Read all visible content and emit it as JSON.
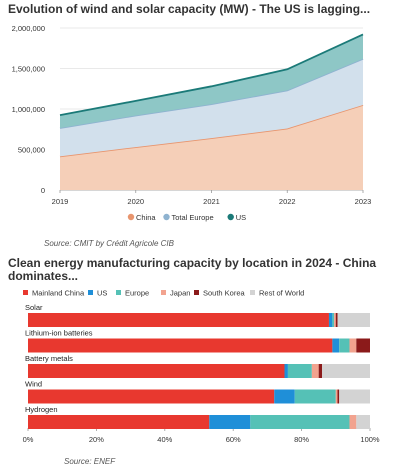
{
  "chart_data": [
    {
      "type": "area",
      "title": "Evolution of wind and solar capacity (MW) - The US is lagging...",
      "source": "Source: CMIT by Crédit Agricole CIB",
      "x": [
        "2019",
        "2020",
        "2021",
        "2022",
        "2023"
      ],
      "ylim": [
        0,
        2000000
      ],
      "yticks": [
        "0",
        "500,000",
        "1,000,000",
        "1,500,000",
        "2,000,000"
      ],
      "stacked": true,
      "series": [
        {
          "name": "China",
          "values": [
            415000,
            530000,
            640000,
            760000,
            1050000
          ],
          "color": "#e8956e",
          "fill": "#f5cfb8"
        },
        {
          "name": "Total Europe",
          "values": [
            350000,
            390000,
            420000,
            470000,
            570000
          ],
          "color": "#8fb3d0",
          "fill": "#d2e0ec"
        },
        {
          "name": "US",
          "values": [
            160000,
            180000,
            220000,
            260000,
            300000
          ],
          "color": "#1b7a78",
          "fill": "#8ec7c6"
        }
      ],
      "legend_position": "bottom"
    },
    {
      "type": "bar",
      "orientation": "horizontal",
      "stacked": true,
      "title": "Clean energy manufacturing capacity by location in 2024 - China dominates...",
      "source": "Source: ENEF",
      "categories": [
        "Solar",
        "Lithium-ion batteries",
        "Battery metals",
        "Wind",
        "Hydrogen"
      ],
      "xlim": [
        0,
        100
      ],
      "xticks": [
        "0%",
        "20%",
        "40%",
        "60%",
        "80%",
        "100%"
      ],
      "series": [
        {
          "name": "Mainland China",
          "color": "#e8382f",
          "values": [
            88,
            89,
            75,
            72,
            53
          ]
        },
        {
          "name": "US",
          "color": "#1f8fd8",
          "values": [
            1,
            2,
            1,
            6,
            12
          ]
        },
        {
          "name": "Europe",
          "color": "#55c1b6",
          "values": [
            0.5,
            3,
            7,
            12,
            29
          ]
        },
        {
          "name": "Japan",
          "color": "#f2a38f",
          "values": [
            0.5,
            2,
            2,
            0.5,
            2
          ]
        },
        {
          "name": "South Korea",
          "color": "#8b1a1a",
          "values": [
            0.5,
            4,
            1,
            0.5,
            0
          ]
        },
        {
          "name": "Rest of World",
          "color": "#d3d3d3",
          "values": [
            9.5,
            0,
            14,
            9,
            4
          ]
        }
      ],
      "legend_position": "top"
    }
  ]
}
